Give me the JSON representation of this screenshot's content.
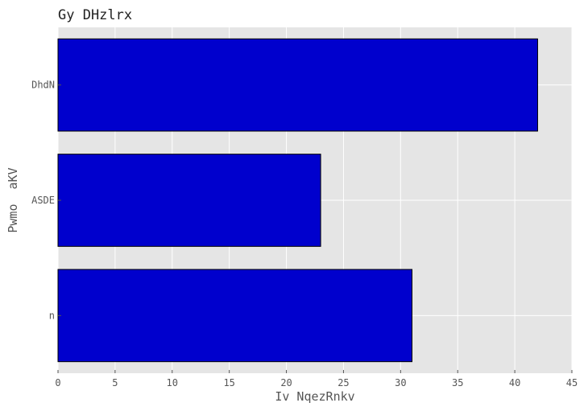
{
  "chart_data": {
    "type": "bar",
    "orientation": "horizontal",
    "title": "Gy DHzlrx",
    "xlabel": "Iv NqezRnkv",
    "ylabel": "Pwmo  aKV",
    "categories": [
      "DhdN",
      "ASDE",
      "n"
    ],
    "values": [
      42,
      23,
      31
    ],
    "xlim": [
      0,
      45
    ],
    "xticks": [
      0,
      5,
      10,
      15,
      20,
      25,
      30,
      35,
      40,
      45
    ],
    "grid": true,
    "bar_color": "#0000cd",
    "background_color": "#e5e5e5"
  }
}
